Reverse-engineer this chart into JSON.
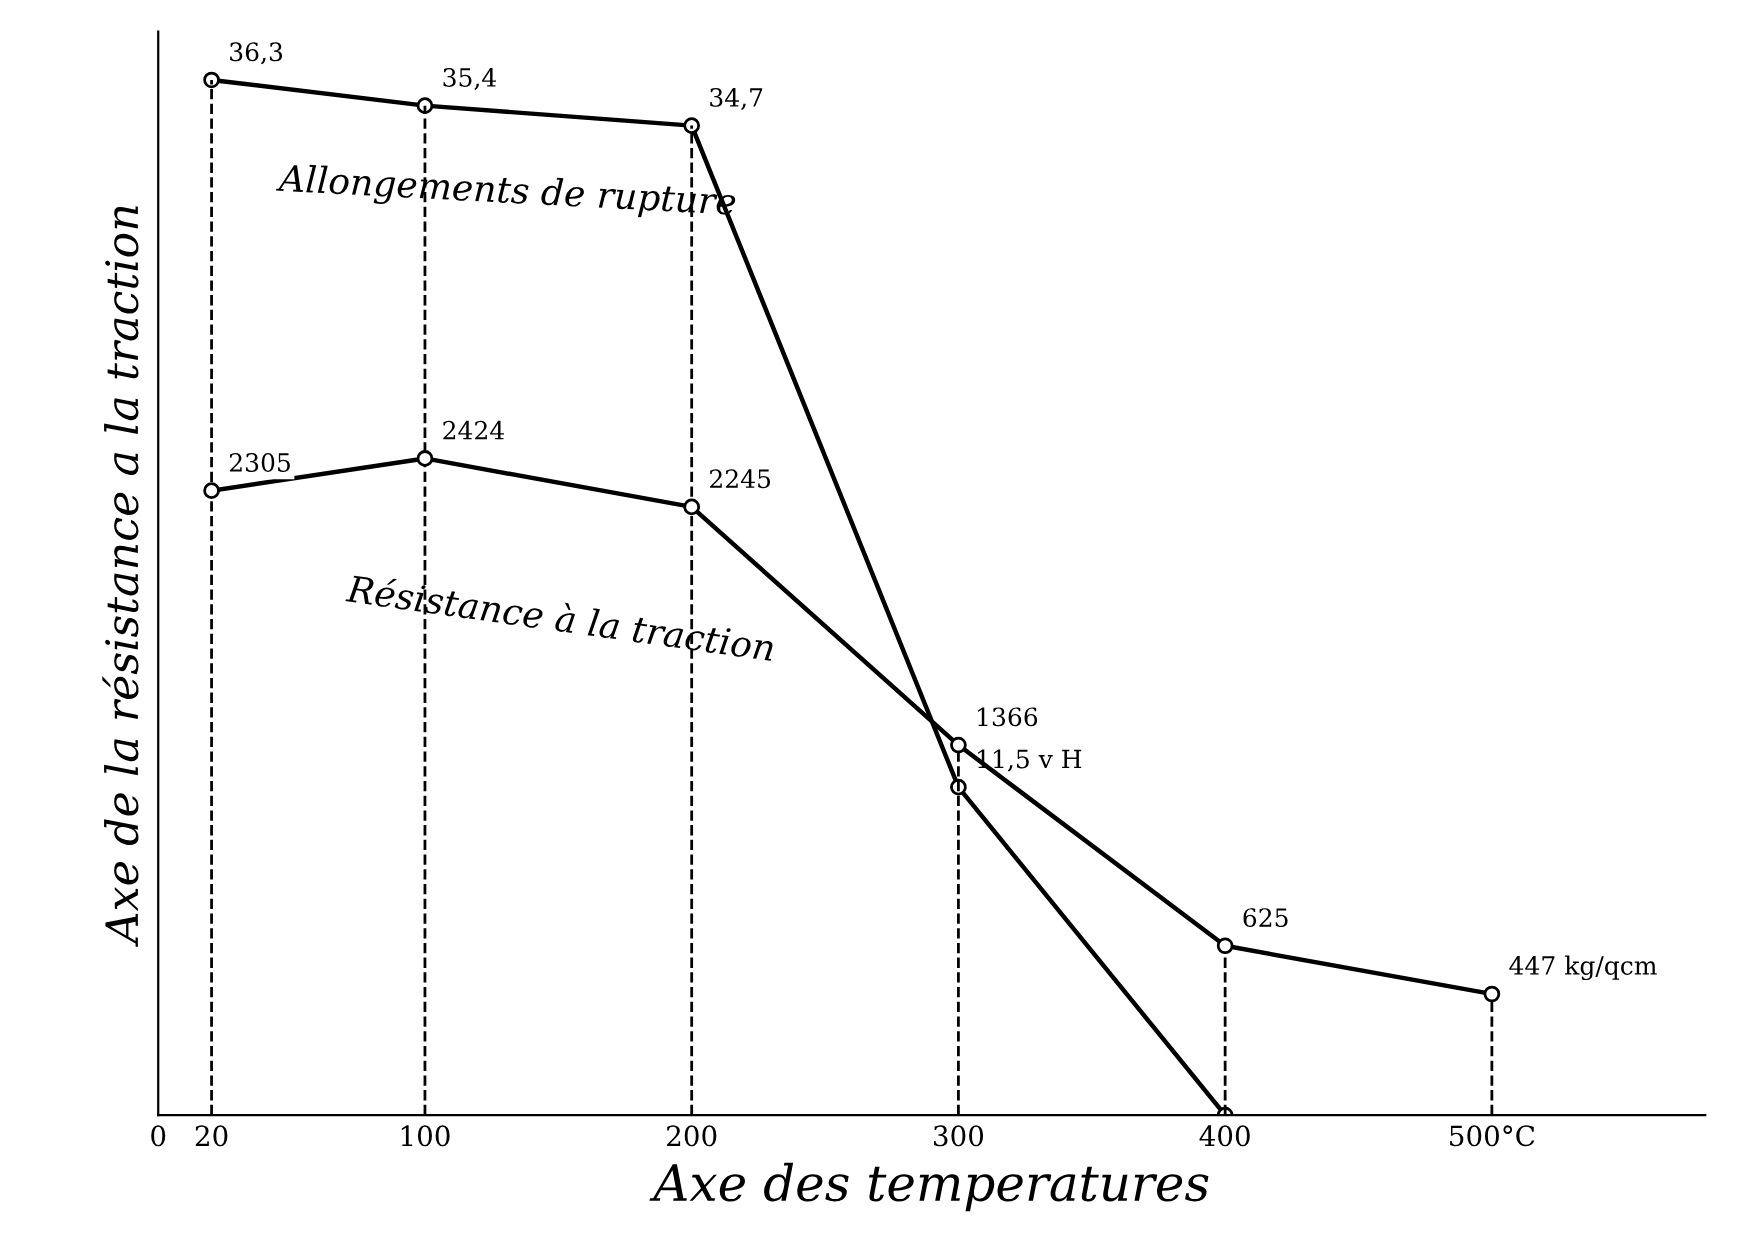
{
  "chart_data": {
    "type": "line",
    "xlabel": "Axe des temperatures",
    "ylabel": "Axe de la résistance a la traction",
    "x": [
      20,
      100,
      200,
      300,
      400,
      500
    ],
    "series": [
      {
        "name": "Allongements de rupture",
        "color": "#000000",
        "x": [
          20,
          100,
          200,
          300,
          400
        ],
        "values": [
          36.3,
          35.4,
          34.7,
          11.5,
          0
        ],
        "value_labels": [
          "36,3",
          "35,4",
          "34,7",
          "11,5 v H",
          null
        ]
      },
      {
        "name": "Résistance à la traction",
        "color": "#000000",
        "axis": "y2",
        "values": [
          2305,
          2424,
          2245,
          1366,
          625,
          447
        ],
        "value_labels": [
          "2305",
          "2424",
          "2245",
          "1366",
          "625",
          "447 kg/qcm"
        ]
      }
    ],
    "xlim": [
      0,
      580
    ],
    "xticks": [
      0,
      20,
      100,
      200,
      300,
      400,
      {
        "value": 500,
        "label": "500°C"
      }
    ],
    "ylim": [
      0,
      38
    ],
    "y2lim": [
      0,
      4000
    ],
    "tick_labels": "x",
    "marker": "circle",
    "line_style": "solid",
    "legend": false,
    "grid": false,
    "ref_lines": [
      {
        "axis": "x",
        "value": 20,
        "line_style": "dashed"
      },
      {
        "axis": "x",
        "value": 100,
        "line_style": "dashed"
      },
      {
        "axis": "x",
        "value": 200,
        "line_style": "dashed"
      },
      {
        "axis": "x",
        "value": 300,
        "line_style": "dashed"
      },
      {
        "axis": "x",
        "value": 400,
        "line_style": "dashed"
      },
      {
        "axis": "x",
        "value": 500,
        "line_style": "dashed"
      }
    ]
  }
}
